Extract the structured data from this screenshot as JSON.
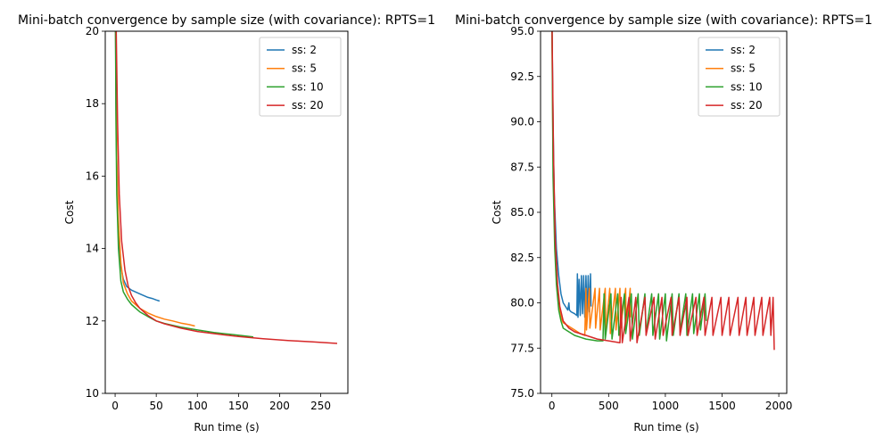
{
  "chart_data": [
    {
      "type": "line",
      "title": "Mini-batch convergence by sample size (with covariance): RPTS=1",
      "xlabel": "Run time (s)",
      "ylabel": "Cost",
      "xlim": [
        -12,
        283
      ],
      "ylim": [
        10,
        20
      ],
      "xticks": [
        0,
        50,
        100,
        150,
        200,
        250
      ],
      "yticks": [
        10,
        12,
        14,
        16,
        18,
        20
      ],
      "grid": false,
      "legend_position": "top-right",
      "series": [
        {
          "name": "ss: 2",
          "color": "#1f77b4",
          "values": [
            [
              0,
              22.0
            ],
            [
              1,
              18.0
            ],
            [
              2,
              16.2
            ],
            [
              3,
              15.0
            ],
            [
              5,
              14.0
            ],
            [
              7,
              13.5
            ],
            [
              10,
              13.15
            ],
            [
              14,
              12.95
            ],
            [
              20,
              12.85
            ],
            [
              30,
              12.75
            ],
            [
              40,
              12.65
            ],
            [
              45,
              12.62
            ],
            [
              50,
              12.58
            ],
            [
              54,
              12.55
            ]
          ]
        },
        {
          "name": "ss: 5",
          "color": "#ff7f0e",
          "values": [
            [
              0,
              22.0
            ],
            [
              1,
              18.5
            ],
            [
              2,
              16.5
            ],
            [
              4,
              14.8
            ],
            [
              7,
              13.6
            ],
            [
              10,
              13.05
            ],
            [
              15,
              12.75
            ],
            [
              20,
              12.55
            ],
            [
              30,
              12.35
            ],
            [
              40,
              12.22
            ],
            [
              50,
              12.12
            ],
            [
              60,
              12.05
            ],
            [
              70,
              12.0
            ],
            [
              80,
              11.94
            ],
            [
              90,
              11.9
            ],
            [
              97,
              11.86
            ]
          ]
        },
        {
          "name": "ss: 10",
          "color": "#2ca02c",
          "values": [
            [
              0,
              22.0
            ],
            [
              1,
              17.5
            ],
            [
              2,
              15.5
            ],
            [
              4,
              14.0
            ],
            [
              7,
              13.1
            ],
            [
              10,
              12.8
            ],
            [
              15,
              12.6
            ],
            [
              20,
              12.45
            ],
            [
              30,
              12.25
            ],
            [
              40,
              12.12
            ],
            [
              50,
              12.0
            ],
            [
              60,
              11.93
            ],
            [
              70,
              11.88
            ],
            [
              80,
              11.83
            ],
            [
              100,
              11.75
            ],
            [
              120,
              11.68
            ],
            [
              140,
              11.63
            ],
            [
              160,
              11.58
            ],
            [
              168,
              11.56
            ]
          ]
        },
        {
          "name": "ss: 20",
          "color": "#d62728",
          "values": [
            [
              0,
              22.0
            ],
            [
              2,
              19.0
            ],
            [
              3,
              17.5
            ],
            [
              5,
              15.5
            ],
            [
              8,
              14.2
            ],
            [
              12,
              13.4
            ],
            [
              16,
              12.95
            ],
            [
              20,
              12.7
            ],
            [
              25,
              12.5
            ],
            [
              30,
              12.35
            ],
            [
              40,
              12.15
            ],
            [
              50,
              12.0
            ],
            [
              60,
              11.92
            ],
            [
              80,
              11.8
            ],
            [
              100,
              11.71
            ],
            [
              120,
              11.65
            ],
            [
              150,
              11.57
            ],
            [
              180,
              11.51
            ],
            [
              210,
              11.46
            ],
            [
              240,
              11.42
            ],
            [
              270,
              11.38
            ]
          ]
        }
      ]
    },
    {
      "type": "line",
      "title": "Mini-batch convergence by sample size (with covariance): RPTS=1",
      "xlabel": "Run time (s)",
      "ylabel": "Cost",
      "xlim": [
        -100,
        2070
      ],
      "ylim": [
        75.0,
        95.0
      ],
      "xticks": [
        0,
        500,
        1000,
        1500,
        2000
      ],
      "yticks": [
        75.0,
        77.5,
        80.0,
        82.5,
        85.0,
        87.5,
        90.0,
        92.5,
        95.0
      ],
      "grid": false,
      "legend_position": "top-right",
      "series": [
        {
          "name": "ss: 2",
          "color": "#1f77b4",
          "values": [
            [
              0,
              96.0
            ],
            [
              10,
              90.0
            ],
            [
              20,
              86.0
            ],
            [
              40,
              83.0
            ],
            [
              60,
              81.5
            ],
            [
              80,
              80.5
            ],
            [
              100,
              80.0
            ],
            [
              120,
              79.8
            ],
            [
              140,
              79.6
            ],
            [
              150,
              80.0
            ],
            [
              155,
              79.6
            ],
            [
              170,
              79.5
            ],
            [
              200,
              79.4
            ],
            [
              220,
              79.3
            ],
            [
              225,
              81.6
            ],
            [
              230,
              79.2
            ],
            [
              240,
              81.3
            ],
            [
              250,
              79.3
            ],
            [
              260,
              81.5
            ],
            [
              270,
              79.4
            ],
            [
              280,
              81.5
            ],
            [
              290,
              79.2
            ],
            [
              300,
              81.5
            ],
            [
              310,
              79.3
            ],
            [
              320,
              81.5
            ],
            [
              330,
              79.5
            ],
            [
              340,
              81.6
            ],
            [
              345,
              79.8
            ]
          ]
        },
        {
          "name": "ss: 5",
          "color": "#ff7f0e",
          "values": [
            [
              0,
              96.0
            ],
            [
              10,
              88.0
            ],
            [
              25,
              84.0
            ],
            [
              40,
              81.5
            ],
            [
              60,
              80.0
            ],
            [
              80,
              79.2
            ],
            [
              100,
              78.9
            ],
            [
              150,
              78.7
            ],
            [
              200,
              78.5
            ],
            [
              250,
              78.3
            ],
            [
              290,
              78.2
            ],
            [
              300,
              80.8
            ],
            [
              305,
              78.5
            ],
            [
              330,
              80.8
            ],
            [
              335,
              78.6
            ],
            [
              380,
              80.8
            ],
            [
              385,
              78.6
            ],
            [
              420,
              80.8
            ],
            [
              425,
              78.5
            ],
            [
              470,
              80.8
            ],
            [
              475,
              78.4
            ],
            [
              510,
              80.8
            ],
            [
              515,
              78.3
            ],
            [
              560,
              80.8
            ],
            [
              565,
              78.5
            ],
            [
              600,
              80.8
            ],
            [
              605,
              78.6
            ],
            [
              650,
              80.8
            ],
            [
              655,
              78.6
            ],
            [
              690,
              80.8
            ],
            [
              692,
              79.2
            ]
          ]
        },
        {
          "name": "ss: 10",
          "color": "#2ca02c",
          "values": [
            [
              0,
              96.0
            ],
            [
              10,
              87.0
            ],
            [
              25,
              83.0
            ],
            [
              40,
              81.0
            ],
            [
              60,
              79.6
            ],
            [
              80,
              79.0
            ],
            [
              100,
              78.6
            ],
            [
              150,
              78.4
            ],
            [
              200,
              78.2
            ],
            [
              250,
              78.1
            ],
            [
              300,
              78.0
            ],
            [
              400,
              77.9
            ],
            [
              450,
              77.9
            ],
            [
              460,
              80.5
            ],
            [
              470,
              78.0
            ],
            [
              520,
              80.5
            ],
            [
              530,
              78.0
            ],
            [
              580,
              80.5
            ],
            [
              590,
              78.2
            ],
            [
              640,
              80.5
            ],
            [
              650,
              78.3
            ],
            [
              700,
              80.5
            ],
            [
              710,
              78.0
            ],
            [
              760,
              80.5
            ],
            [
              770,
              78.2
            ],
            [
              820,
              80.5
            ],
            [
              830,
              78.3
            ],
            [
              880,
              80.5
            ],
            [
              890,
              78.2
            ],
            [
              940,
              80.5
            ],
            [
              950,
              78.0
            ],
            [
              1000,
              80.5
            ],
            [
              1010,
              77.9
            ],
            [
              1060,
              80.5
            ],
            [
              1070,
              78.2
            ],
            [
              1120,
              80.5
            ],
            [
              1130,
              78.4
            ],
            [
              1180,
              80.5
            ],
            [
              1190,
              78.2
            ],
            [
              1240,
              80.5
            ],
            [
              1250,
              78.3
            ],
            [
              1300,
              80.5
            ],
            [
              1310,
              78.5
            ],
            [
              1350,
              80.5
            ],
            [
              1360,
              79.0
            ]
          ]
        },
        {
          "name": "ss: 20",
          "color": "#d62728",
          "values": [
            [
              0,
              96.0
            ],
            [
              15,
              88.0
            ],
            [
              30,
              83.5
            ],
            [
              50,
              81.0
            ],
            [
              70,
              79.8
            ],
            [
              100,
              79.0
            ],
            [
              150,
              78.6
            ],
            [
              200,
              78.4
            ],
            [
              300,
              78.2
            ],
            [
              400,
              78.0
            ],
            [
              500,
              77.9
            ],
            [
              600,
              77.8
            ],
            [
              610,
              80.3
            ],
            [
              620,
              77.8
            ],
            [
              680,
              80.3
            ],
            [
              690,
              77.9
            ],
            [
              740,
              80.3
            ],
            [
              750,
              77.8
            ],
            [
              820,
              80.3
            ],
            [
              830,
              78.2
            ],
            [
              900,
              80.3
            ],
            [
              910,
              78.0
            ],
            [
              970,
              80.3
            ],
            [
              980,
              78.2
            ],
            [
              1050,
              80.3
            ],
            [
              1060,
              78.2
            ],
            [
              1120,
              80.3
            ],
            [
              1130,
              78.2
            ],
            [
              1190,
              80.3
            ],
            [
              1200,
              78.2
            ],
            [
              1270,
              80.3
            ],
            [
              1280,
              78.2
            ],
            [
              1340,
              80.3
            ],
            [
              1350,
              78.2
            ],
            [
              1410,
              80.3
            ],
            [
              1420,
              78.2
            ],
            [
              1490,
              80.3
            ],
            [
              1500,
              78.2
            ],
            [
              1560,
              80.3
            ],
            [
              1570,
              78.2
            ],
            [
              1640,
              80.3
            ],
            [
              1650,
              78.2
            ],
            [
              1710,
              80.3
            ],
            [
              1720,
              78.2
            ],
            [
              1780,
              80.3
            ],
            [
              1790,
              78.2
            ],
            [
              1850,
              80.3
            ],
            [
              1860,
              78.2
            ],
            [
              1920,
              80.3
            ],
            [
              1930,
              78.2
            ],
            [
              1950,
              80.3
            ],
            [
              1960,
              77.4
            ]
          ]
        }
      ]
    }
  ]
}
